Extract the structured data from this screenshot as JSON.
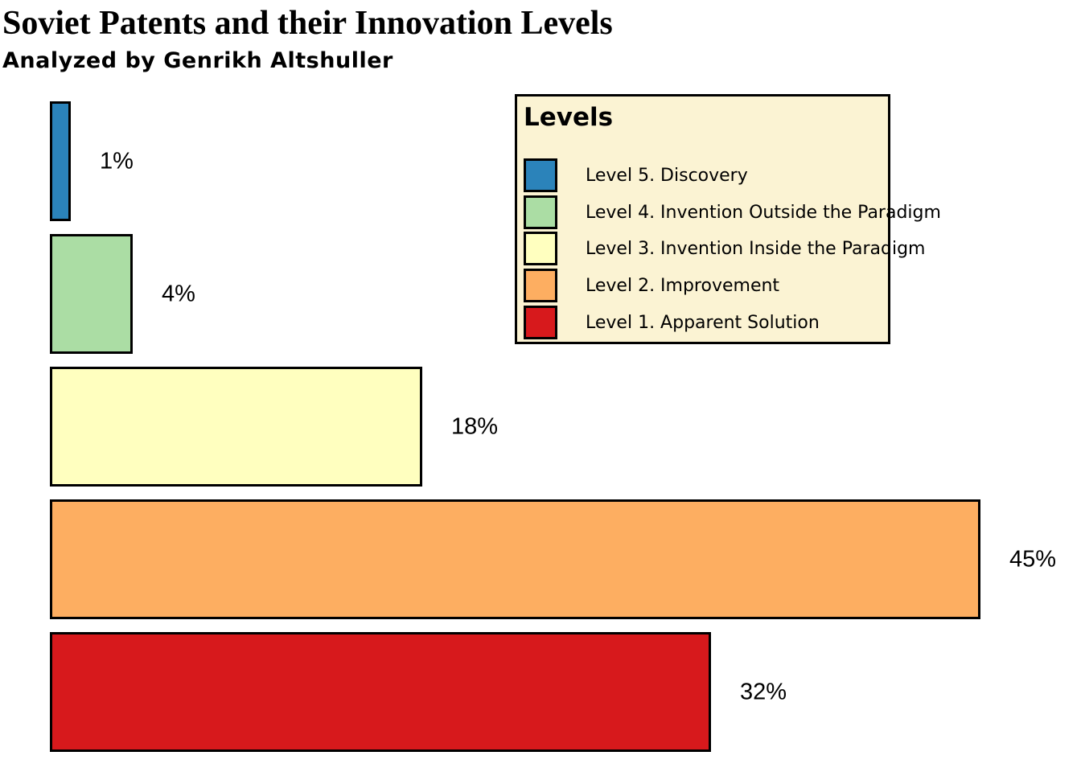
{
  "chart_data": {
    "type": "bar",
    "orientation": "horizontal",
    "title": "Soviet Patents and their Innovation Levels",
    "subtitle": "Analyzed by Genrikh Altshuller",
    "categories": [
      "Level 5. Discovery",
      "Level 4. Invention Outside the Paradigm",
      "Level 3. Invention Inside the Paradigm",
      "Level 2. Improvement",
      "Level 1. Apparent Solution"
    ],
    "values": [
      1,
      4,
      18,
      45,
      32
    ],
    "value_labels": [
      "1%",
      "4%",
      "18%",
      "45%",
      "32%"
    ],
    "colors": [
      "#2b83ba",
      "#abdda4",
      "#ffffbf",
      "#fdae61",
      "#d7191c"
    ],
    "bar_edge_color": "#000000",
    "xlim": [
      0,
      45
    ],
    "grid": false,
    "axes_visible": false,
    "legend": {
      "title": "Levels",
      "position": "upper right",
      "background": "#fbf3d3",
      "border_color": "#000000"
    }
  }
}
